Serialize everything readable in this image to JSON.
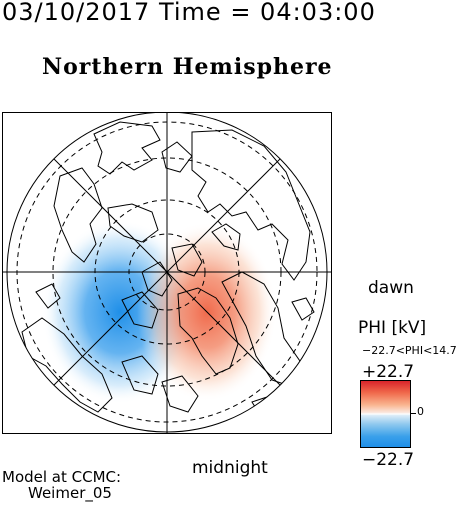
{
  "header": {
    "datetime": "03/10/2017 Time = 04:03:00"
  },
  "map": {
    "title": "Northern Hemisphere",
    "labels": {
      "dawn": "dawn",
      "midnight": "midnight"
    }
  },
  "colorbar": {
    "title": "PHI [kV]",
    "range_text": "−22.7<PHI<14.7",
    "max_label": "+22.7",
    "min_label": "−22.7",
    "zero_label": "0",
    "colors": {
      "positive": "#d9242b",
      "negative": "#1f8fe8",
      "neutral": "#ffffff"
    }
  },
  "credit": {
    "line1": "Model at CCMC:",
    "line2": "Weimer_05"
  }
}
